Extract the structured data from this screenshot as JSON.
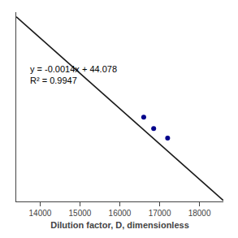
{
  "chart_data": {
    "type": "scatter",
    "xlabel": "Dilution factor, D, dimensionless",
    "series": [
      {
        "type": "line",
        "color": "#1a1a1a",
        "x": [
          13400,
          18600
        ],
        "values": [
          25.318,
          18.038
        ]
      },
      {
        "type": "scatter",
        "color": "#00008B",
        "x": [
          16600,
          16850,
          17200
        ],
        "values": [
          21.34,
          20.89,
          20.51
        ]
      }
    ],
    "annotations": [
      {
        "text": "y = -0.0014x + 44.078\nR² = 0.9947",
        "x": 13700,
        "y": 23.5
      }
    ],
    "xlim": [
      13400,
      18600
    ],
    "xticks": [
      14000,
      15000,
      16000,
      17000,
      18000
    ],
    "ylim": [
      18,
      25.5
    ],
    "tick_labels": "x",
    "grid": false
  }
}
